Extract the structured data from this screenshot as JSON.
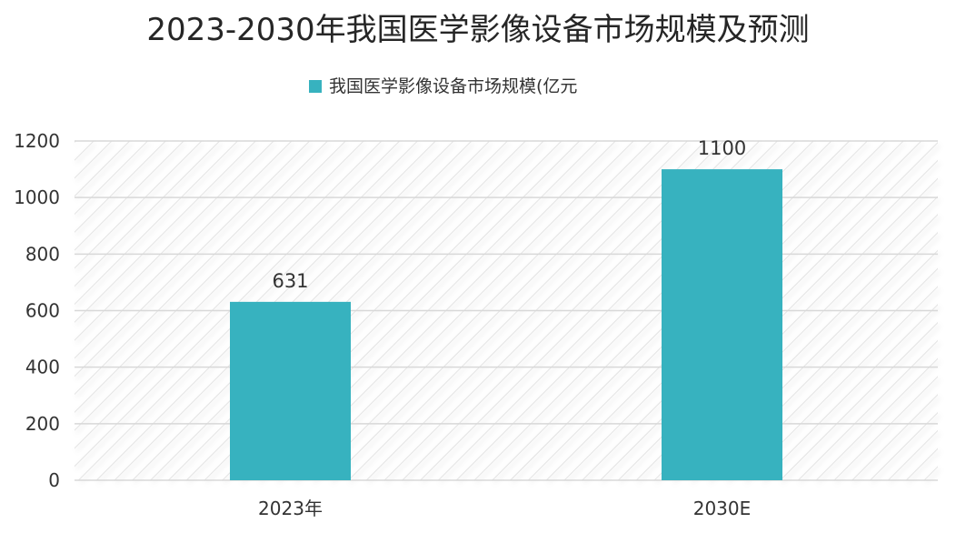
{
  "colors": {
    "bar": "#37b2bf",
    "grid": "#d8d8d8",
    "hatch": "#e3e3e3",
    "text": "#333333"
  },
  "chart_data": {
    "type": "bar",
    "title": "2023-2030年我国医学影像设备市场规模及预测",
    "xlabel": "",
    "ylabel": "",
    "categories": [
      "2023年",
      "2030E"
    ],
    "series": [
      {
        "name": "我国医学影像设备市场规模(亿元",
        "values": [
          631,
          1100
        ]
      }
    ],
    "data_labels": [
      "631",
      "1100"
    ],
    "ylim": [
      0,
      1200
    ],
    "yticks": [
      0,
      200,
      400,
      600,
      800,
      1000,
      1200
    ],
    "ytick_labels": [
      "0",
      "200",
      "400",
      "600",
      "800",
      "1000",
      "1200"
    ],
    "grid": true,
    "legend_position": "top-center"
  }
}
